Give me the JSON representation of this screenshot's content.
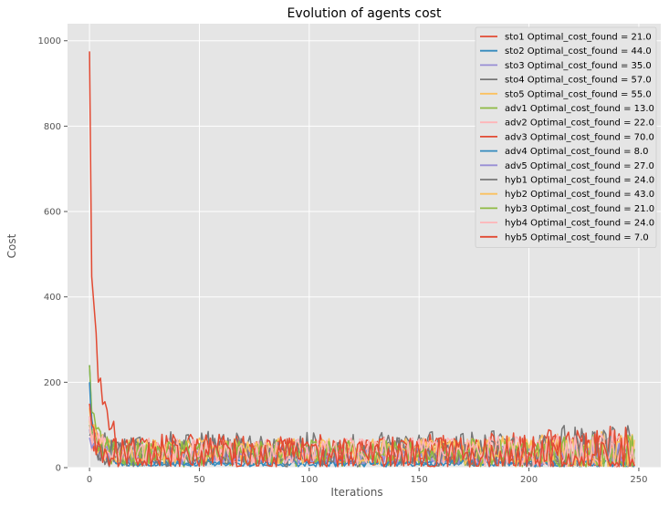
{
  "chart_data": {
    "type": "line",
    "title": "Evolution of agents cost",
    "xlabel": "Iterations",
    "ylabel": "Cost",
    "xlim": [
      -10,
      260
    ],
    "ylim": [
      0,
      1040
    ],
    "xticks": [
      0,
      50,
      100,
      150,
      200,
      250
    ],
    "yticks": [
      0,
      200,
      400,
      600,
      800,
      1000
    ],
    "grid": true,
    "legend_position": "top-right",
    "n_iterations": 249,
    "series": [
      {
        "name": "sto1 Optimal_cost_found = 21.0",
        "color": "#E24A33",
        "start": 120,
        "base": 38,
        "amp": 28,
        "seed": 1
      },
      {
        "name": "sto2 Optimal_cost_found = 44.0",
        "color": "#348ABD",
        "start": 240,
        "base": 12,
        "amp": 8,
        "seed": 2
      },
      {
        "name": "sto3 Optimal_cost_found = 35.0",
        "color": "#988ED5",
        "start": 90,
        "base": 32,
        "amp": 22,
        "seed": 3
      },
      {
        "name": "sto4 Optimal_cost_found = 57.0",
        "color": "#777777",
        "start": 80,
        "base": 45,
        "amp": 40,
        "seed": 4
      },
      {
        "name": "sto5 Optimal_cost_found = 55.0",
        "color": "#FBC15E",
        "start": 140,
        "base": 40,
        "amp": 30,
        "seed": 5
      },
      {
        "name": "adv1 Optimal_cost_found = 13.0",
        "color": "#8EBA42",
        "start": 240,
        "base": 30,
        "amp": 30,
        "seed": 6
      },
      {
        "name": "adv2 Optimal_cost_found = 22.0",
        "color": "#FFB5B8",
        "start": 100,
        "base": 38,
        "amp": 32,
        "seed": 7
      },
      {
        "name": "adv3 Optimal_cost_found = 70.0",
        "color": "#E24A33",
        "start": 975,
        "base": 42,
        "amp": 36,
        "seed": 8
      },
      {
        "name": "adv4 Optimal_cost_found = 8.0",
        "color": "#348ABD",
        "start": 200,
        "base": 10,
        "amp": 8,
        "seed": 9
      },
      {
        "name": "adv5 Optimal_cost_found = 27.0",
        "color": "#988ED5",
        "start": 70,
        "base": 28,
        "amp": 20,
        "seed": 10
      },
      {
        "name": "hyb1 Optimal_cost_found = 24.0",
        "color": "#777777",
        "start": 75,
        "base": 35,
        "amp": 35,
        "seed": 11
      },
      {
        "name": "hyb2 Optimal_cost_found = 43.0",
        "color": "#FBC15E",
        "start": 110,
        "base": 38,
        "amp": 30,
        "seed": 12
      },
      {
        "name": "hyb3 Optimal_cost_found = 21.0",
        "color": "#8EBA42",
        "start": 100,
        "base": 35,
        "amp": 30,
        "seed": 13
      },
      {
        "name": "hyb4 Optimal_cost_found = 24.0",
        "color": "#FFB5B8",
        "start": 120,
        "base": 38,
        "amp": 32,
        "seed": 14
      },
      {
        "name": "hyb5 Optimal_cost_found = 7.0",
        "color": "#E24A33",
        "start": 150,
        "base": 30,
        "amp": 40,
        "seed": 15
      }
    ]
  }
}
